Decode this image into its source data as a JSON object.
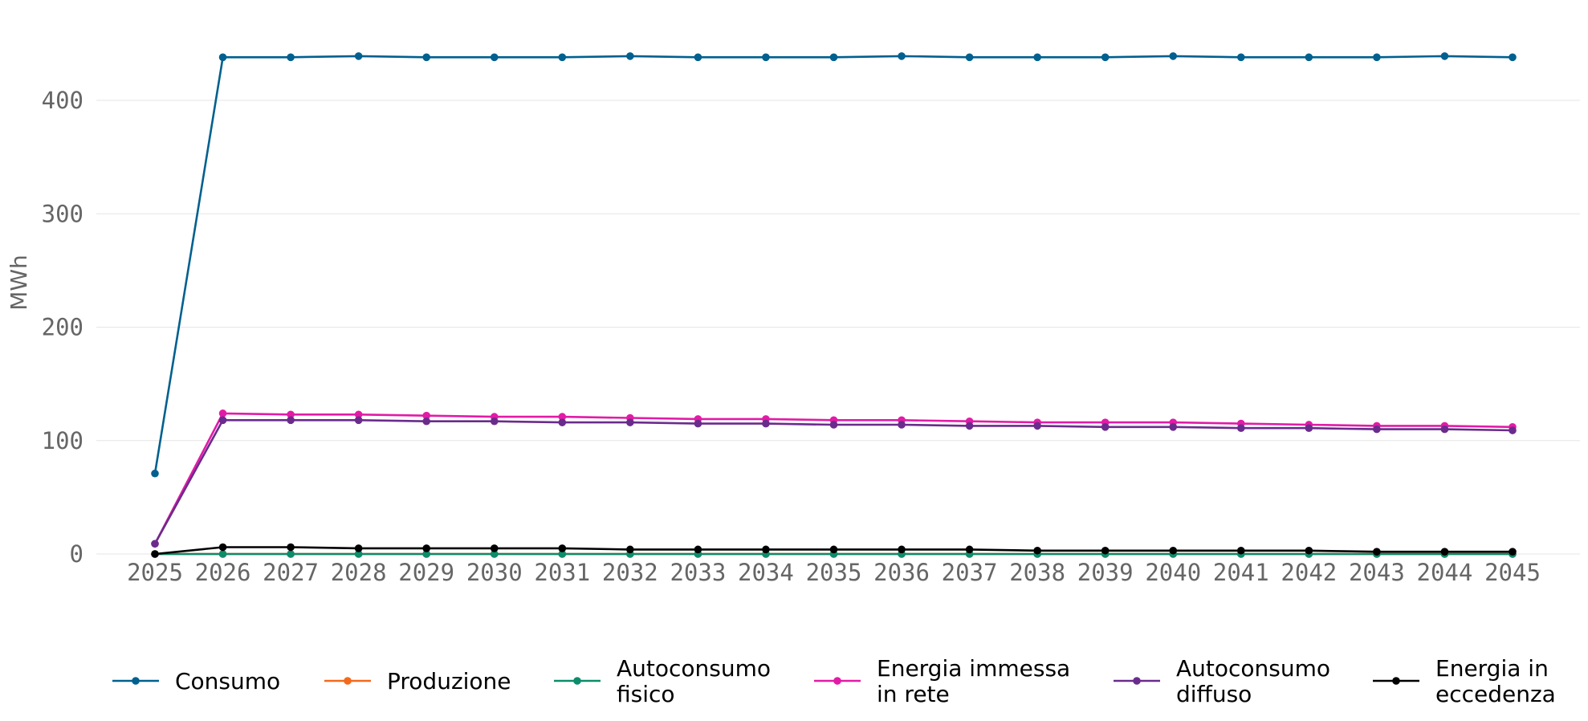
{
  "chart_data": {
    "type": "line",
    "title": "",
    "xlabel": "",
    "ylabel": "MWh",
    "ylim": [
      0,
      440
    ],
    "yticks": [
      0,
      100,
      200,
      300,
      400
    ],
    "grid": true,
    "legend_position": "bottom",
    "x": [
      "2025",
      "2026",
      "2027",
      "2028",
      "2029",
      "2030",
      "2031",
      "2032",
      "2033",
      "2034",
      "2035",
      "2036",
      "2037",
      "2038",
      "2039",
      "2040",
      "2041",
      "2042",
      "2043",
      "2044",
      "2045"
    ],
    "series": [
      {
        "name": "Consumo",
        "color": "#00608f",
        "values": [
          71,
          438,
          438,
          439,
          438,
          438,
          438,
          439,
          438,
          438,
          438,
          439,
          438,
          438,
          438,
          439,
          438,
          438,
          438,
          439,
          438
        ]
      },
      {
        "name": "Produzione",
        "color": "#f26a1b",
        "values": [
          0,
          0,
          0,
          0,
          0,
          0,
          0,
          0,
          0,
          0,
          0,
          0,
          0,
          0,
          0,
          0,
          0,
          0,
          0,
          0,
          0
        ]
      },
      {
        "name": "Autoconsumo fisico",
        "color": "#0d8c6b",
        "values": [
          0,
          0,
          0,
          0,
          0,
          0,
          0,
          0,
          0,
          0,
          0,
          0,
          0,
          0,
          0,
          0,
          0,
          0,
          0,
          0,
          0
        ]
      },
      {
        "name": "Energia immessa in rete",
        "color": "#e21ba7",
        "values": [
          9,
          124,
          123,
          123,
          122,
          121,
          121,
          120,
          119,
          119,
          118,
          118,
          117,
          116,
          116,
          116,
          115,
          114,
          113,
          113,
          112
        ]
      },
      {
        "name": "Autoconsumo diffuso",
        "color": "#6a2c8c",
        "values": [
          9,
          118,
          118,
          118,
          117,
          117,
          116,
          116,
          115,
          115,
          114,
          114,
          113,
          113,
          112,
          112,
          111,
          111,
          110,
          110,
          109
        ]
      },
      {
        "name": "Energia in eccedenza",
        "color": "#000000",
        "values": [
          0,
          6,
          6,
          5,
          5,
          5,
          5,
          4,
          4,
          4,
          4,
          4,
          4,
          3,
          3,
          3,
          3,
          3,
          2,
          2,
          2
        ]
      }
    ],
    "legend_labels": [
      [
        "Consumo"
      ],
      [
        "Produzione"
      ],
      [
        "Autoconsumo",
        "fisico"
      ],
      [
        "Energia immessa",
        "in rete"
      ],
      [
        "Autoconsumo",
        "diffuso"
      ],
      [
        "Energia in",
        "eccedenza"
      ]
    ]
  }
}
